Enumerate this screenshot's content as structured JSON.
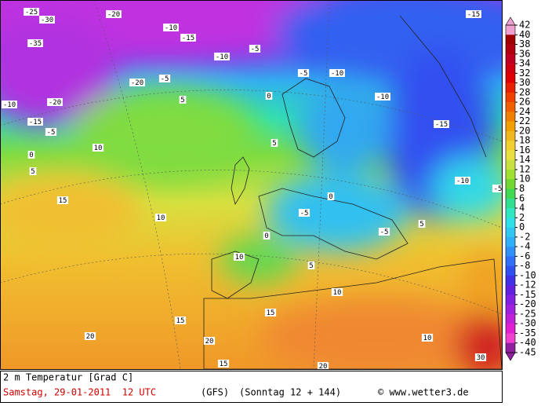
{
  "map_labels": [
    -25,
    -30,
    -35,
    -20,
    -10,
    -15,
    -10,
    -20,
    -5,
    -10,
    -20,
    -15,
    -5,
    0,
    5,
    10,
    15,
    5,
    0,
    -5,
    -10,
    -10,
    -15,
    -10,
    5,
    0,
    -5,
    0,
    -5,
    5,
    10,
    10,
    5,
    10,
    15,
    15,
    20,
    20,
    15,
    20,
    10,
    30,
    -5,
    -15,
    -5
  ],
  "colorbar": {
    "labels": [
      42,
      40,
      38,
      36,
      34,
      32,
      30,
      28,
      26,
      24,
      22,
      20,
      18,
      16,
      14,
      12,
      10,
      8,
      6,
      4,
      2,
      0,
      -2,
      -4,
      -6,
      -8,
      -10,
      -12,
      -15,
      -20,
      -25,
      -30,
      -35,
      -40,
      -45
    ],
    "colors": [
      "#f0a0d0",
      "#a00000",
      "#b00010",
      "#c00020",
      "#d00010",
      "#e00000",
      "#e82000",
      "#f04000",
      "#f06000",
      "#f08000",
      "#f0a000",
      "#f0b820",
      "#f0d030",
      "#e8e040",
      "#c8e040",
      "#a0e030",
      "#70d830",
      "#40d850",
      "#30e090",
      "#30e8c0",
      "#30e0e8",
      "#30c8f0",
      "#30b0f8",
      "#3090f8",
      "#3070f8",
      "#3050f0",
      "#4030e8",
      "#6020e0",
      "#8020e0",
      "#a020e0",
      "#c020d8",
      "#e020d0",
      "#f040d0",
      "#9020a0"
    ]
  },
  "footer": {
    "title": "2 m Temperatur [Grad C]",
    "date": "Samstag, 29-01-2011  12 UTC",
    "model": "(GFS)",
    "run": "(Sonntag 12 + 144)",
    "credit": "© www.wetter3.de"
  }
}
